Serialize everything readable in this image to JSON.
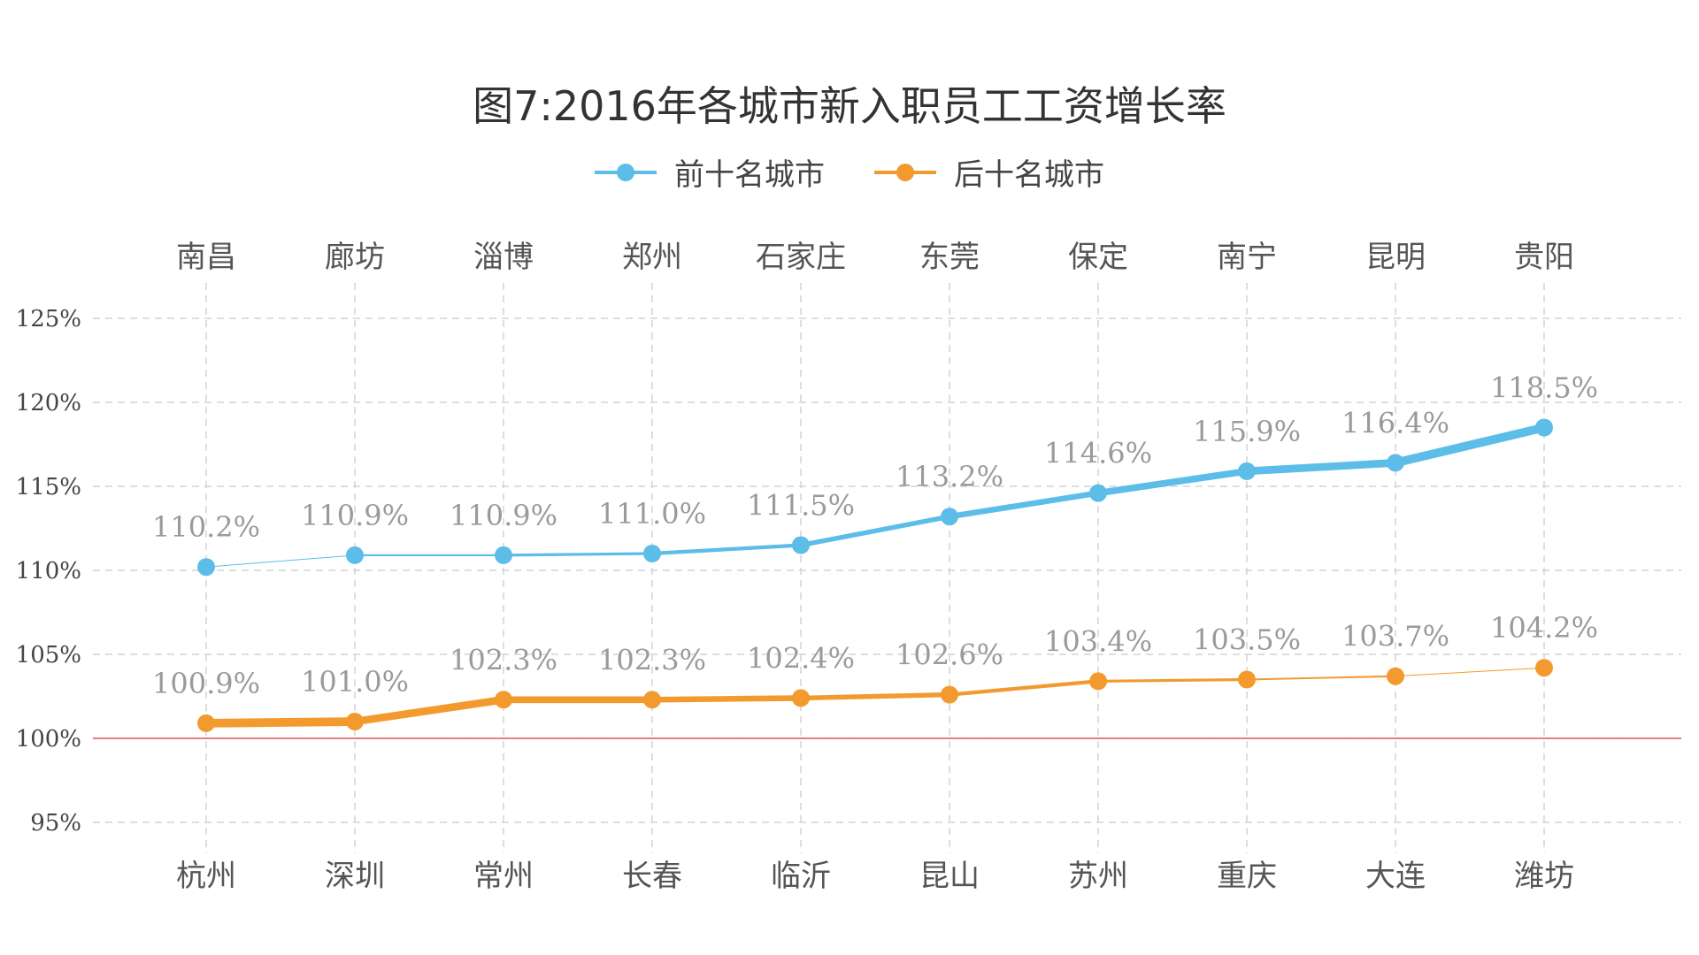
{
  "chart_data": {
    "type": "line",
    "title": "图7:2016年各城市新入职员工工资增长率",
    "ylim": [
      95,
      125
    ],
    "yticks": [
      "95%",
      "100%",
      "105%",
      "110%",
      "115%",
      "120%",
      "125%"
    ],
    "ytick_values": [
      95,
      100,
      105,
      110,
      115,
      120,
      125
    ],
    "reference_line": 100,
    "grid": true,
    "legend_position": "top-center",
    "series": [
      {
        "name": "前十名城市",
        "color": "#5bbde8",
        "axis": "top",
        "categories": [
          "南昌",
          "廊坊",
          "淄博",
          "郑州",
          "石家庄",
          "东莞",
          "保定",
          "南宁",
          "昆明",
          "贵阳"
        ],
        "values": [
          110.2,
          110.9,
          110.9,
          111.0,
          111.5,
          113.2,
          114.6,
          115.9,
          116.4,
          118.5
        ],
        "labels": [
          "110.2%",
          "110.9%",
          "110.9%",
          "111.0%",
          "111.5%",
          "113.2%",
          "114.6%",
          "115.9%",
          "116.4%",
          "118.5%"
        ]
      },
      {
        "name": "后十名城市",
        "color": "#f39a2e",
        "axis": "bottom",
        "categories": [
          "杭州",
          "深圳",
          "常州",
          "长春",
          "临沂",
          "昆山",
          "苏州",
          "重庆",
          "大连",
          "潍坊"
        ],
        "values": [
          100.9,
          101.0,
          102.3,
          102.3,
          102.4,
          102.6,
          103.4,
          103.5,
          103.7,
          104.2
        ],
        "labels": [
          "100.9%",
          "101.0%",
          "102.3%",
          "102.3%",
          "102.4%",
          "102.6%",
          "103.4%",
          "103.5%",
          "103.7%",
          "104.2%"
        ]
      }
    ]
  },
  "colors": {
    "reference_line": "#e05a5a",
    "grid": "#d4d4d4"
  }
}
